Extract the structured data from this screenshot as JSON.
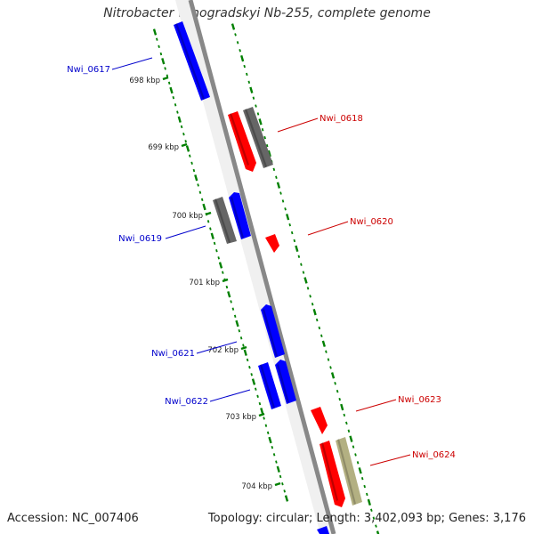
{
  "title": "Nitrobacter winogradskyi Nb-255, complete genome",
  "footer": {
    "accession": "Accession: NC_007406",
    "topology": "Topology: circular; Length: 3,402,093 bp; Genes: 3,176"
  },
  "colors": {
    "forward": "#0000ff",
    "reverse": "#ff0000",
    "other": "#666666",
    "other_light": "#b3b082",
    "backbone": "#888888",
    "ticks": "#008000",
    "label_forward": "#0000cc",
    "label_reverse": "#cc0000"
  },
  "tick_labels": [
    "698 kbp",
    "699 kbp",
    "700 kbp",
    "701 kbp",
    "702 kbp",
    "703 kbp",
    "704 kbp"
  ],
  "genes": [
    {
      "id": "g0617",
      "label": "Nwi_0617",
      "color": "forward"
    },
    {
      "id": "g0618",
      "label": "Nwi_0618",
      "color": "reverse"
    },
    {
      "id": "g0620",
      "label": "Nwi_0620",
      "color": "reverse"
    },
    {
      "id": "g0619",
      "label": "Nwi_0619",
      "color": "forward"
    },
    {
      "id": "g0621",
      "label": "Nwi_0621",
      "color": "forward"
    },
    {
      "id": "g0622",
      "label": "Nwi_0622",
      "color": "forward"
    },
    {
      "id": "g0623",
      "label": "Nwi_0623",
      "color": "reverse"
    },
    {
      "id": "g0624",
      "label": "Nwi_0624",
      "color": "reverse"
    }
  ]
}
